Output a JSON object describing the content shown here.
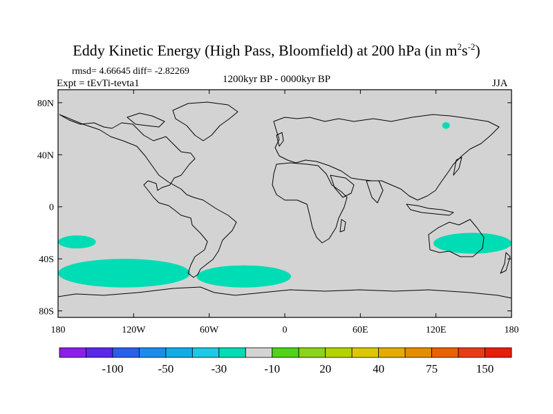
{
  "title": {
    "main": "Eddy Kinetic Energy (High Pass, Bloomfield) at 200 hPa (in m",
    "sup1": "2",
    "mid": "s",
    "sup2": "-2",
    "end": ")"
  },
  "stats": "rmsd= 4.66645 diff= -2.82269",
  "expt": "Expt = tEvTi-tevta1",
  "period": "1200kyr BP - 0000kyr BP",
  "season": "JJA",
  "colors": {
    "ocean": "#d3d3d3",
    "anomaly": "#00dcb4",
    "coast": "#000000"
  },
  "chart_data": {
    "type": "heatmap",
    "projection": "cylindrical-equidistant",
    "lon_range": [
      -180,
      180
    ],
    "lat_range": [
      -90,
      90
    ],
    "x_ticks": [
      "180",
      "120W",
      "60W",
      "0",
      "60E",
      "120E",
      "180"
    ],
    "x_tick_values": [
      -180,
      -120,
      -60,
      0,
      60,
      120,
      180
    ],
    "y_ticks": [
      "80N",
      "40N",
      "0",
      "40S",
      "80S"
    ],
    "y_tick_values": [
      80,
      40,
      0,
      -40,
      -80
    ],
    "colorbar": {
      "labels": [
        "-100",
        "-50",
        "-30",
        "-10",
        "20",
        "40",
        "75",
        "150"
      ],
      "colors": [
        "#8c1ee6",
        "#5a28e6",
        "#2860e6",
        "#1e8ce6",
        "#14aae6",
        "#1ec8e6",
        "#00dcb4",
        "#d3d3d3",
        "#50d21e",
        "#8cd21e",
        "#b4d200",
        "#dcc800",
        "#e6aa00",
        "#e68c00",
        "#e66400",
        "#e63c14",
        "#e61e0a"
      ]
    },
    "anomaly_regions": [
      {
        "lon": [
          -180,
          -150
        ],
        "lat": [
          -22,
          -32
        ],
        "label": "South Pacific west patch"
      },
      {
        "lon": [
          -180,
          -75
        ],
        "lat": [
          -40,
          -62
        ],
        "label": "South Pacific band"
      },
      {
        "lon": [
          -70,
          5
        ],
        "lat": [
          -45,
          -62
        ],
        "label": "South Atlantic band"
      },
      {
        "lon": [
          118,
          180
        ],
        "lat": [
          -20,
          -36
        ],
        "label": "Australia-Pacific band"
      },
      {
        "lon": [
          125,
          131
        ],
        "lat": [
          65,
          60
        ],
        "label": "Siberia patch"
      }
    ]
  }
}
